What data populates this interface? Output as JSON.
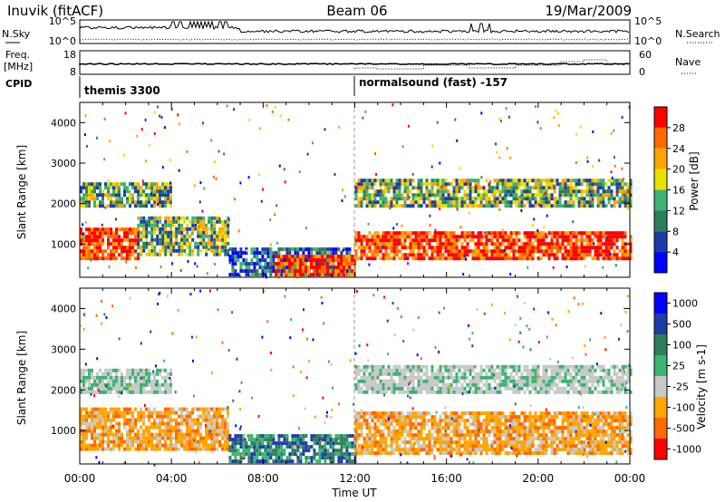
{
  "header": {
    "station": "Inuvik (fitACF)",
    "beam": "Beam 06",
    "date": "19/Mar/2009"
  },
  "noise_panel": {
    "left_label": "N.Sky",
    "right_label": "N.Search",
    "left_ticks": [
      "10^5",
      "10^0"
    ],
    "right_ticks": [
      "10^5",
      "10^0"
    ]
  },
  "freq_panel": {
    "left_label_1": "Freq.",
    "left_label_2": "[MHz]",
    "right_label": "Nave",
    "left_ticks": [
      "18",
      "8"
    ],
    "right_ticks": [
      "60",
      "0"
    ]
  },
  "cpid": {
    "label": "CPID",
    "program_1": "themis 3300",
    "program_2": "normalsound (fast) -157",
    "switch_time": "12:00"
  },
  "chart_data": [
    {
      "type": "heatmap",
      "title": "",
      "ylabel": "Slant Range [km]",
      "ylim": [
        180,
        4500
      ],
      "xlim_hours": [
        0,
        24
      ],
      "y_ticks": [
        "1000",
        "2000",
        "3000",
        "4000"
      ],
      "colorbar_label": "Power [dB]",
      "colorbar_ticks": [
        "28",
        "24",
        "20",
        "16",
        "12",
        "8",
        "4"
      ],
      "colorbar_colors": [
        "#ff0000",
        "#ff6a00",
        "#ffa500",
        "#e8e000",
        "#3cb371",
        "#2e7d5b",
        "#1e3ca8",
        "#0000ff"
      ],
      "regions": [
        {
          "t0": 0.0,
          "t1": 2.5,
          "r0": 600,
          "r1": 1400,
          "level": "high"
        },
        {
          "t0": 2.5,
          "t1": 6.5,
          "r0": 700,
          "r1": 1600,
          "level": "mid"
        },
        {
          "t0": 0.0,
          "t1": 4.0,
          "r0": 1900,
          "r1": 2500,
          "level": "mid"
        },
        {
          "t0": 6.5,
          "t1": 11.8,
          "r0": 200,
          "r1": 900,
          "level": "low"
        },
        {
          "t0": 8.5,
          "t1": 12.0,
          "r0": 200,
          "r1": 700,
          "level": "high"
        },
        {
          "t0": 12.0,
          "t1": 24.0,
          "r0": 600,
          "r1": 1300,
          "level": "high"
        },
        {
          "t0": 12.0,
          "t1": 24.0,
          "r0": 1900,
          "r1": 2600,
          "level": "mid"
        }
      ]
    },
    {
      "type": "heatmap",
      "title": "",
      "ylabel": "Slant Range [km]",
      "ylim": [
        180,
        4500
      ],
      "xlim_hours": [
        0,
        24
      ],
      "y_ticks": [
        "1000",
        "2000",
        "3000",
        "4000"
      ],
      "colorbar_label": "Velocity [m s-1]",
      "colorbar_ticks": [
        "1000",
        "500",
        "100",
        "25",
        "-25",
        "-100",
        "-500",
        "-1000"
      ],
      "colorbar_colors": [
        "#0000ff",
        "#1e3ca8",
        "#2e7d5b",
        "#3cb371",
        "#c8c8c8",
        "#ffa500",
        "#ff6a00",
        "#ff0000"
      ],
      "regions": [
        {
          "t0": 0.0,
          "t1": 6.5,
          "r0": 500,
          "r1": 1500,
          "level": "neg"
        },
        {
          "t0": 0.0,
          "t1": 4.0,
          "r0": 1900,
          "r1": 2500,
          "level": "zero"
        },
        {
          "t0": 6.5,
          "t1": 12.0,
          "r0": 200,
          "r1": 900,
          "level": "pos"
        },
        {
          "t0": 12.0,
          "t1": 24.0,
          "r0": 400,
          "r1": 1400,
          "level": "neg"
        },
        {
          "t0": 12.0,
          "t1": 24.0,
          "r0": 1900,
          "r1": 2600,
          "level": "zero"
        }
      ]
    }
  ],
  "x_axis": {
    "label": "Time UT",
    "ticks": [
      "00:00",
      "04:00",
      "08:00",
      "12:00",
      "16:00",
      "20:00",
      "00:00"
    ]
  }
}
